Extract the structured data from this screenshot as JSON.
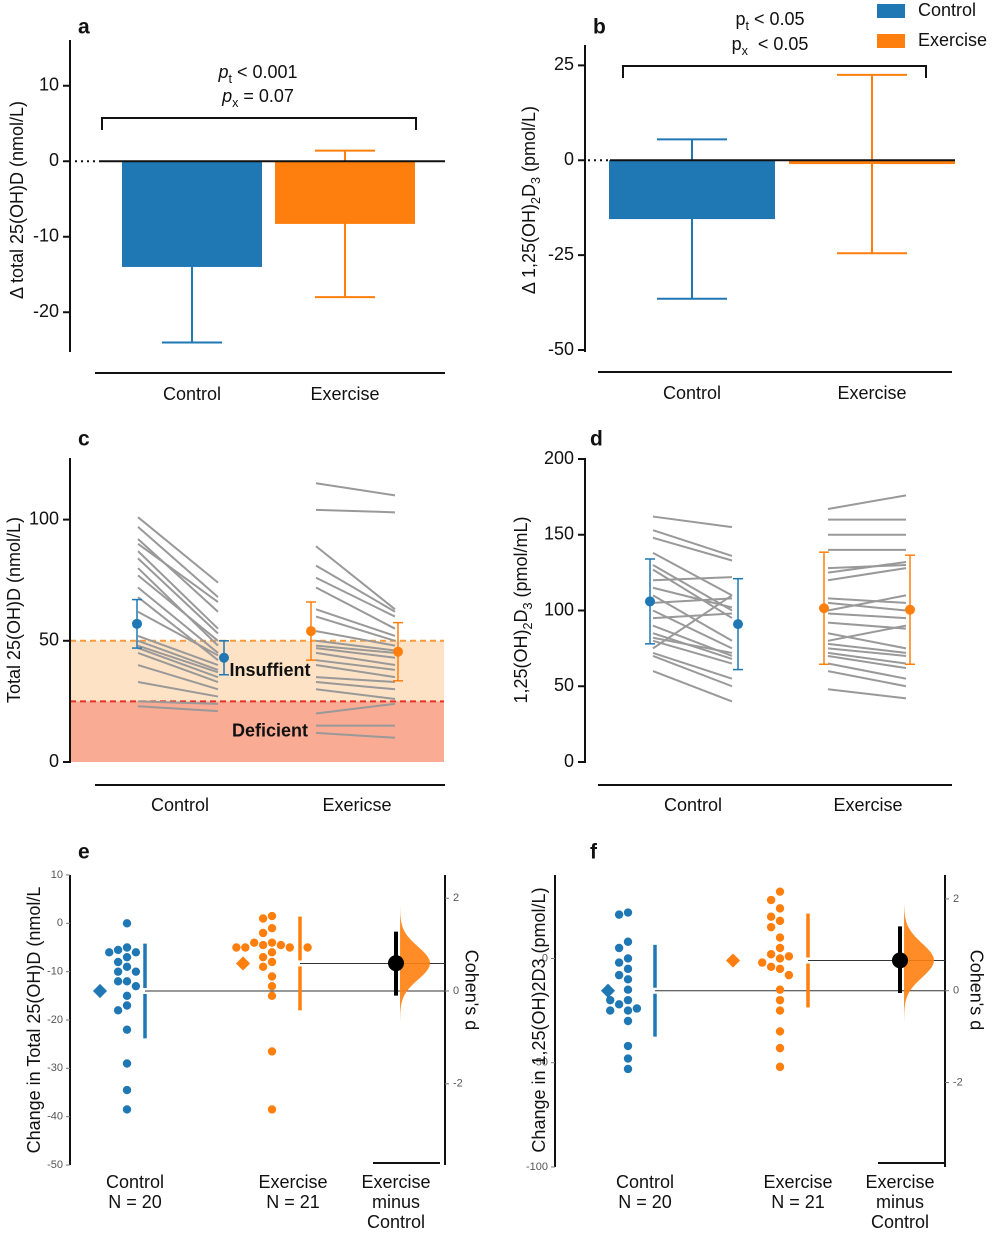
{
  "chart_data": [
    {
      "type": "bar",
      "panel": "a",
      "ylabel": "Δ total 25(OH)D (nmol/L)",
      "categories": [
        "Control",
        "Exercise"
      ],
      "values": [
        -14,
        -8.3
      ],
      "errors": [
        10,
        9.7
      ],
      "colors": [
        "#1f77b4",
        "#ff7f0e"
      ],
      "ylim": [
        -25,
        15
      ],
      "yticks": [
        -20,
        -10,
        0,
        10
      ],
      "annotations": [
        [
          {
            "text": "p",
            "italic": true
          },
          {
            "text": "t",
            "sub": true
          },
          {
            "text": " < 0.001"
          }
        ],
        [
          {
            "text": "p",
            "italic": true
          },
          {
            "text": "x",
            "sub": true
          },
          {
            "text": " = 0.07"
          }
        ]
      ]
    },
    {
      "type": "bar",
      "panel": "b",
      "ylabel": [
        {
          "text": "Δ 1,25(OH)"
        },
        {
          "text": "2",
          "sub": true
        },
        {
          "text": "D"
        },
        {
          "text": "3",
          "sub": true
        },
        {
          "text": " (pmol/L)"
        }
      ],
      "categories": [
        "Control",
        "Exercise"
      ],
      "values": [
        -15.5,
        -1
      ],
      "errors": [
        21,
        23.5
      ],
      "colors": [
        "#1f77b4",
        "#ff7f0e"
      ],
      "ylim": [
        -50,
        28
      ],
      "yticks": [
        -50,
        -25,
        0,
        25
      ],
      "legend": "upper right",
      "annotations": [
        [
          {
            "text": "p"
          },
          {
            "text": "t",
            "sub": true
          },
          {
            "text": " < 0.05"
          }
        ],
        [
          {
            "text": "p"
          },
          {
            "text": "x",
            "sub": true
          },
          {
            "text": "  < 0.05"
          }
        ]
      ]
    },
    {
      "type": "paired",
      "panel": "c",
      "ylabel": "Total 25(OH)D (nmol/L)",
      "categories": [
        "Control",
        "Exericse"
      ],
      "ylim": [
        0,
        125
      ],
      "yticks": [
        0,
        50,
        100
      ],
      "line_color": "#999999",
      "bands": [
        {
          "label": "Insuffient",
          "from": 25,
          "to": 50,
          "color": "#fde2c5",
          "line_color": "#f79a3d"
        },
        {
          "label": "Deficient",
          "from": 0,
          "to": 25,
          "color": "#f9ab93",
          "line_color": "#e53127"
        }
      ],
      "groups": [
        {
          "color": "#1f77b4",
          "pre": [
            101,
            97,
            92,
            90,
            87,
            84,
            80,
            77,
            72,
            68,
            62,
            52,
            50,
            48,
            47,
            45,
            40,
            33,
            25,
            23
          ],
          "post": [
            74,
            68,
            62,
            66,
            55,
            53,
            48,
            50,
            45,
            42,
            44,
            40,
            38,
            37,
            35,
            33,
            30,
            27,
            24,
            21
          ],
          "means": [
            57,
            43
          ],
          "errors": [
            10,
            7
          ]
        },
        {
          "color": "#ff7f0e",
          "pre": [
            115,
            104,
            89,
            81,
            76,
            72,
            63,
            60,
            54,
            50,
            48,
            47,
            45,
            42,
            40,
            35,
            33,
            30,
            20,
            15,
            12
          ],
          "post": [
            110,
            103,
            63,
            62,
            60,
            55,
            52,
            50,
            48,
            46,
            45,
            43,
            40,
            38,
            35,
            33,
            30,
            26,
            24,
            15,
            10
          ],
          "means": [
            54,
            45.5
          ],
          "errors": [
            12,
            12
          ]
        }
      ]
    },
    {
      "type": "paired",
      "panel": "d",
      "ylabel": [
        {
          "text": "1,25(OH)"
        },
        {
          "text": "2",
          "sub": true
        },
        {
          "text": "D"
        },
        {
          "text": "3",
          "sub": true
        },
        {
          "text": " (pmol/mL)"
        }
      ],
      "categories": [
        "Control",
        "Exercise"
      ],
      "ylim": [
        0,
        200
      ],
      "yticks": [
        0,
        50,
        100,
        150,
        200
      ],
      "line_color": "#999999",
      "groups": [
        {
          "color": "#1f77b4",
          "pre": [
            162,
            153,
            148,
            138,
            130,
            127,
            120,
            115,
            110,
            105,
            100,
            95,
            90,
            85,
            82,
            80,
            75,
            72,
            70,
            60
          ],
          "post": [
            155,
            136,
            133,
            110,
            100,
            95,
            122,
            102,
            80,
            108,
            75,
            98,
            70,
            68,
            72,
            65,
            110,
            55,
            50,
            40
          ],
          "means": [
            106,
            91
          ],
          "errors": [
            28,
            30
          ]
        },
        {
          "color": "#ff7f0e",
          "pre": [
            167,
            160,
            150,
            140,
            128,
            125,
            120,
            108,
            105,
            100,
            98,
            92,
            85,
            80,
            78,
            75,
            72,
            70,
            65,
            60,
            48
          ],
          "post": [
            176,
            160,
            150,
            140,
            130,
            132,
            128,
            105,
            100,
            110,
            95,
            88,
            75,
            90,
            72,
            70,
            65,
            62,
            55,
            50,
            42
          ],
          "means": [
            101.5,
            100.5
          ],
          "errors": [
            37,
            36
          ]
        }
      ]
    },
    {
      "type": "estimation",
      "panel": "e",
      "ylabel": "Change in Total 25(OH)D (nmol/L",
      "y2label": "Cohen's d",
      "x_labels": [
        [
          "Control",
          "N = 20"
        ],
        [
          "Exercise",
          "N = 21"
        ],
        [
          "Exercise",
          "minus",
          "Control"
        ]
      ],
      "ylim": [
        -50,
        10
      ],
      "yticks": [
        -50,
        -40,
        -30,
        -20,
        -10,
        0,
        10
      ],
      "y2lim": [
        -3.75,
        2.5
      ],
      "y2ticks": [
        -2,
        0,
        2
      ],
      "groups": [
        {
          "color": "#1f77b4",
          "mean": -14,
          "sd": 9.8,
          "values": [
            0,
            -5,
            -5.5,
            -6,
            -6,
            -7,
            -8,
            -9,
            -10,
            -10,
            -12,
            -12,
            -13,
            -15,
            -17,
            -18,
            -22,
            -29,
            -34.5,
            -38.5
          ]
        },
        {
          "color": "#ff7f0e",
          "mean": -8.3,
          "sd": 9.7,
          "values": [
            1.5,
            1,
            -1,
            -2,
            -4,
            -4,
            -4.5,
            -4.5,
            -5,
            -5,
            -5,
            -5,
            -6,
            -7,
            -8,
            -9,
            -11,
            -13,
            -15,
            -26.5,
            -38.5
          ]
        }
      ],
      "effect": {
        "value": 0.6,
        "ci": [
          -0.1,
          1.28
        ],
        "color": "#ff7f0e"
      }
    },
    {
      "type": "estimation",
      "panel": "f",
      "ylabel": "Change in 1,25(OH)2D3 (pmol/L)",
      "y2label": "Cohen's d",
      "x_labels": [
        [
          "Control",
          "N = 20"
        ],
        [
          "Exercise",
          "N = 21"
        ],
        [
          "Exercise",
          "minus",
          "Control"
        ]
      ],
      "ylim": [
        -100,
        40
      ],
      "yticks": [
        -100,
        -50,
        0
      ],
      "y2lim": [
        -3.84,
        2.52
      ],
      "y2ticks": [
        -2,
        0,
        2
      ],
      "groups": [
        {
          "color": "#1f77b4",
          "mean": -15.5,
          "sd": 22,
          "values": [
            22,
            21,
            8,
            5,
            0,
            -2,
            -5,
            -8,
            -10,
            -15,
            -20,
            -20,
            -22,
            -24,
            -25,
            -25,
            -30,
            -42,
            -48,
            -53
          ]
        },
        {
          "color": "#ff7f0e",
          "mean": -1,
          "sd": 22.5,
          "values": [
            32,
            28,
            24,
            20,
            18,
            15,
            10,
            5,
            2,
            1,
            0,
            -2,
            -4,
            -5,
            -8,
            -15,
            -20,
            -25,
            -35,
            -43,
            -52
          ]
        }
      ],
      "effect": {
        "value": 0.66,
        "ci": [
          -0.05,
          1.4
        ],
        "color": "#ff7f0e"
      }
    }
  ]
}
